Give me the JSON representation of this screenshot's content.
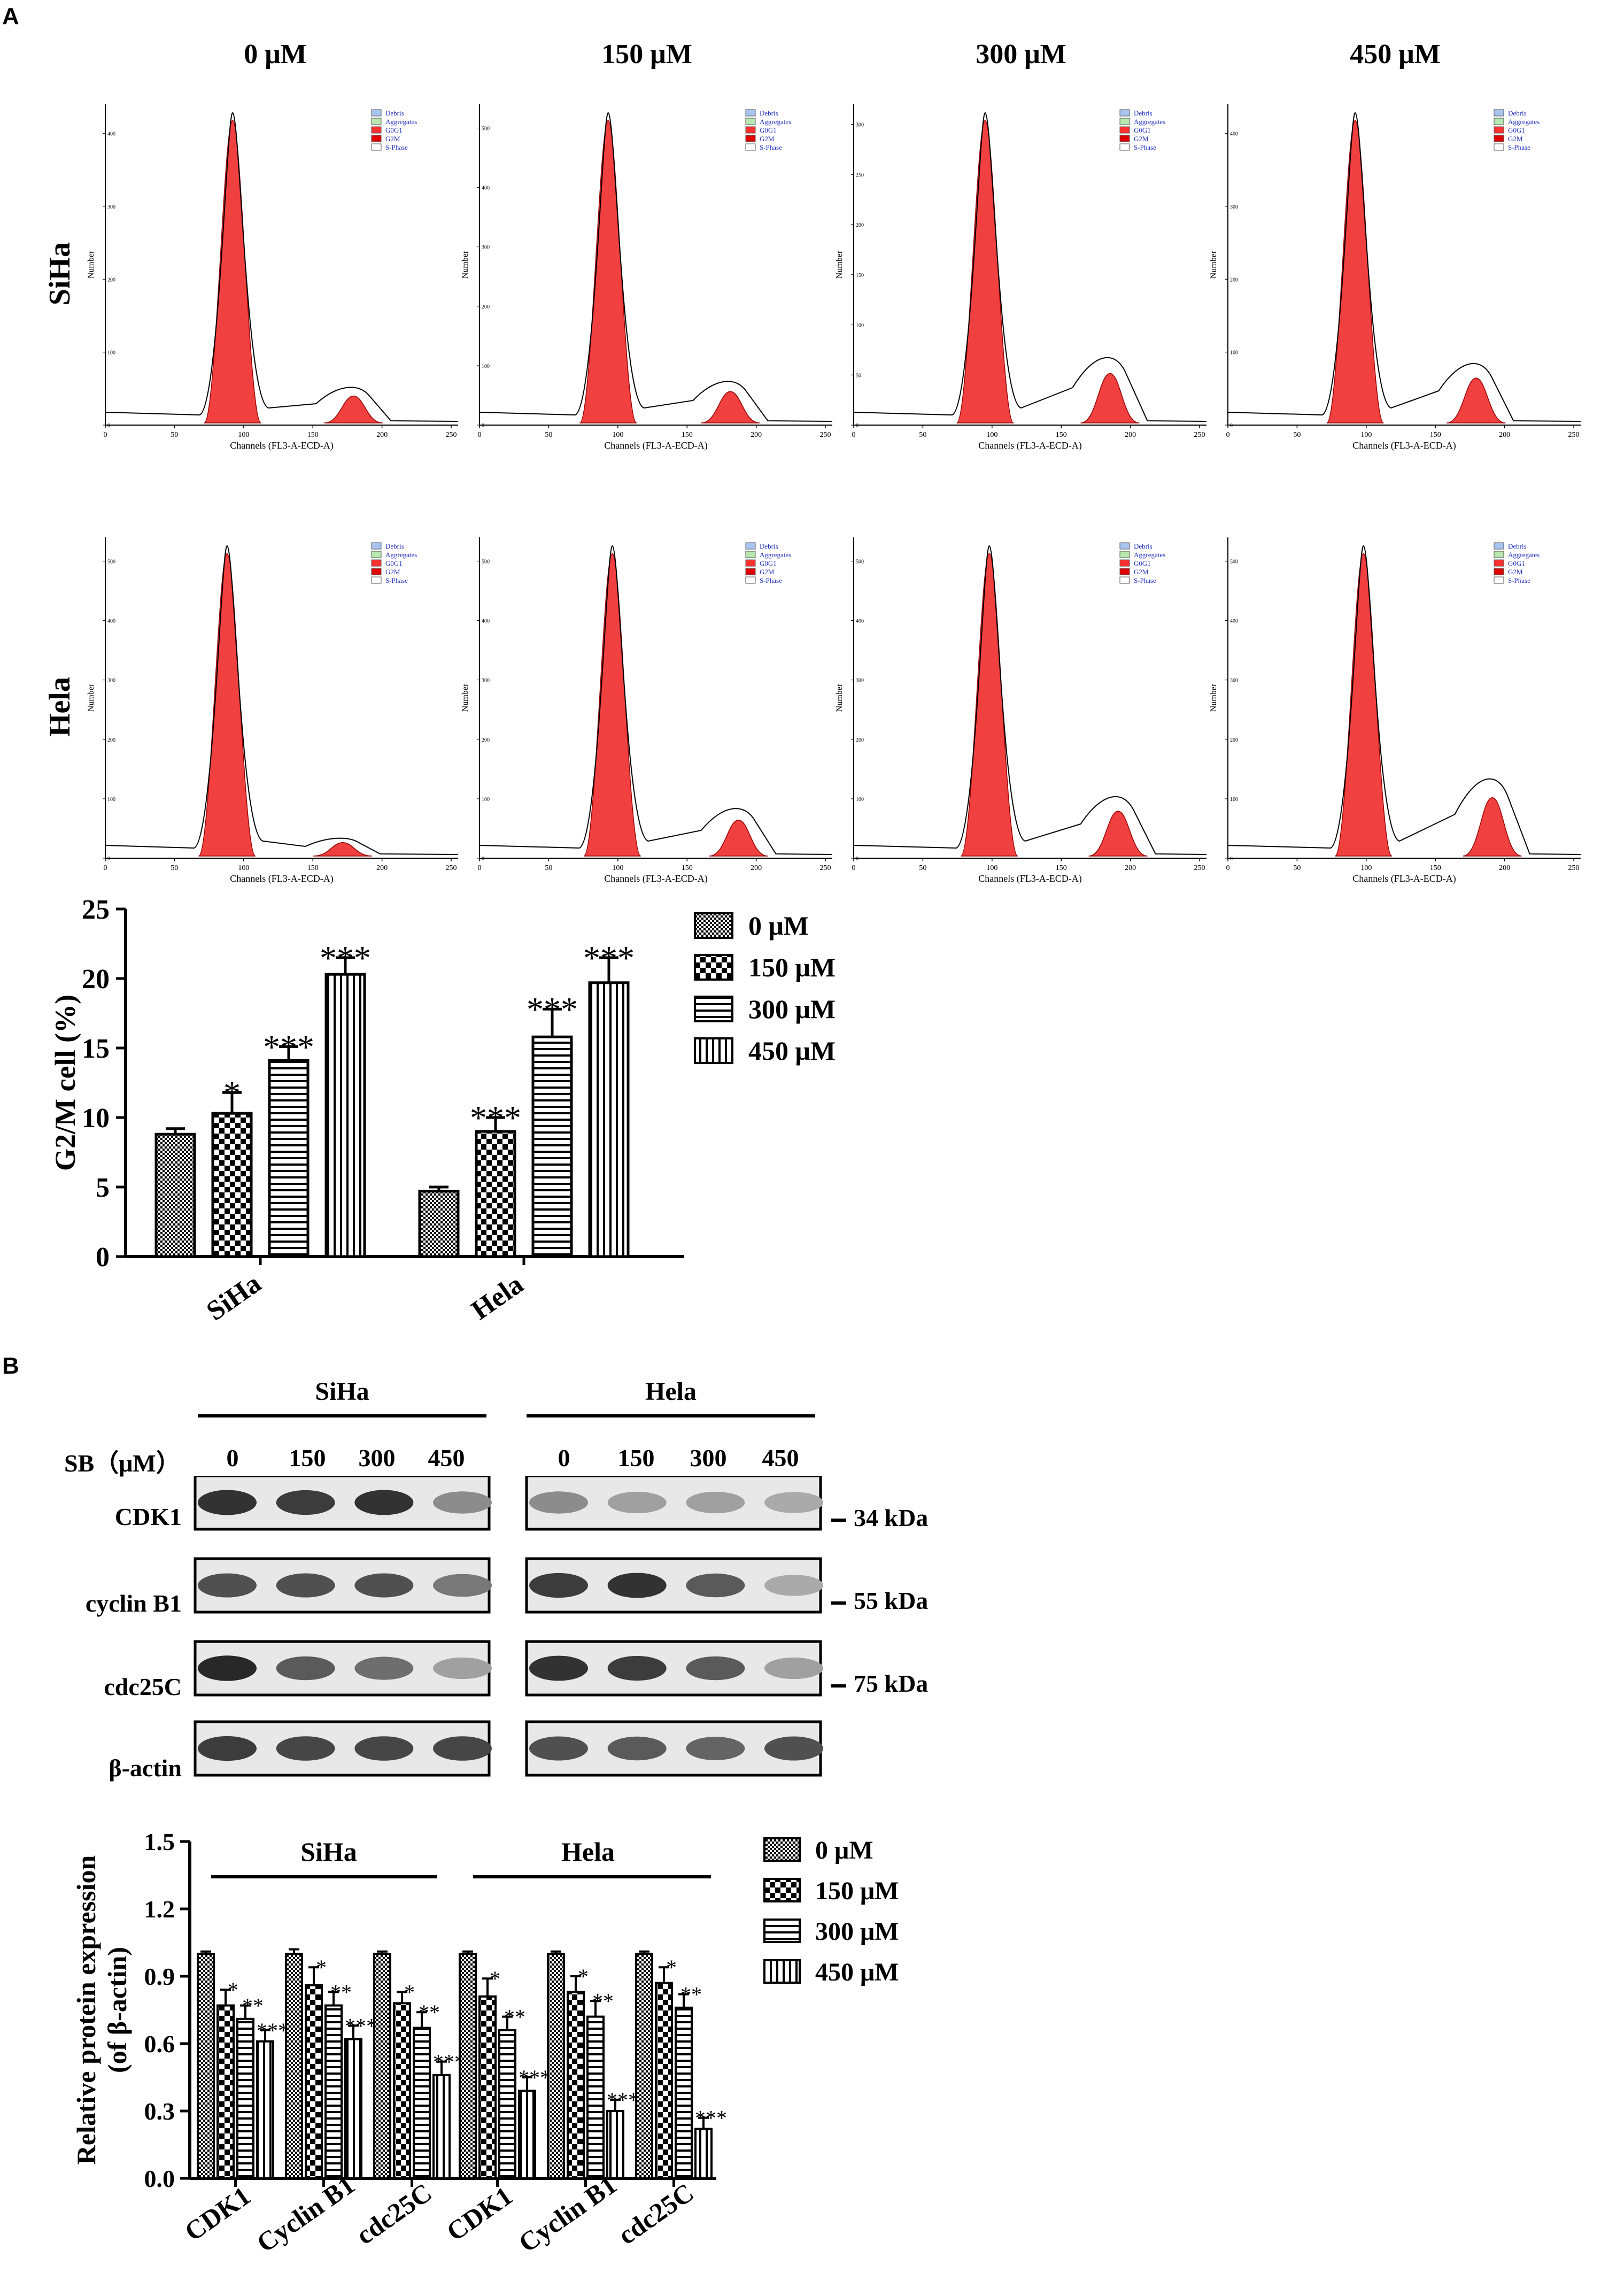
{
  "panel_a": {
    "letter": "A",
    "concentrations": [
      "0 μM",
      "150 μM",
      "300 μM",
      "450 μM"
    ],
    "row_labels": [
      "SiHa",
      "Hela"
    ],
    "histogram": {
      "x_axis_label": "Channels (FL3-A-ECD-A)",
      "y_axis_label": "Number",
      "x_ticks": [
        "0",
        "50",
        "100",
        "150",
        "200",
        "250"
      ],
      "legend": [
        "Debris",
        "Aggregates",
        "G0G1",
        "G2M",
        "S-Phase"
      ],
      "legend_colors": [
        "#a8c4f0",
        "#b8e8b0",
        "#ff3030",
        "#e00000",
        "#ffffff"
      ],
      "g0g1_color": "#f04040"
    },
    "flow_panels": [
      {
        "row": "SiHa",
        "conc": "0 μM",
        "y_ticks": [
          "0",
          "100",
          "200",
          "300",
          "400"
        ],
        "g1_peak": 92,
        "g2_height": 0.12
      },
      {
        "row": "SiHa",
        "conc": "150 μM",
        "y_ticks": [
          "0",
          "100",
          "200",
          "300",
          "400",
          "500"
        ],
        "g1_peak": 93,
        "g2_height": 0.14
      },
      {
        "row": "SiHa",
        "conc": "300 μM",
        "y_ticks": [
          "0",
          "50",
          "100",
          "150",
          "200",
          "250",
          "300"
        ],
        "g1_peak": 95,
        "g2_height": 0.22
      },
      {
        "row": "SiHa",
        "conc": "450 μM",
        "y_ticks": [
          "0",
          "100",
          "200",
          "300",
          "400"
        ],
        "g1_peak": 92,
        "g2_height": 0.2
      },
      {
        "row": "Hela",
        "conc": "0 μM",
        "y_ticks": [
          "0",
          "100",
          "200",
          "300",
          "400",
          "500"
        ],
        "g1_peak": 88,
        "g2_height": 0.06
      },
      {
        "row": "Hela",
        "conc": "150 μM",
        "y_ticks": [
          "0",
          "100",
          "200",
          "300",
          "400",
          "500"
        ],
        "g1_peak": 96,
        "g2_height": 0.16
      },
      {
        "row": "Hela",
        "conc": "300 μM",
        "y_ticks": [
          "0",
          "100",
          "200",
          "300",
          "400",
          "500"
        ],
        "g1_peak": 98,
        "g2_height": 0.2
      },
      {
        "row": "Hela",
        "conc": "450 μM",
        "y_ticks": [
          "0",
          "100",
          "200",
          "300",
          "400",
          "500"
        ],
        "g1_peak": 98,
        "g2_height": 0.26
      }
    ]
  },
  "chart_data": [
    {
      "type": "bar",
      "title": "",
      "ylabel": "G2/M cell (%)",
      "xlabel": "",
      "categories": [
        "SiHa",
        "Hela"
      ],
      "ylim": [
        0,
        25
      ],
      "yticks": [
        "0",
        "5",
        "10",
        "15",
        "20",
        "25"
      ],
      "series": [
        {
          "name": "0 μM",
          "values": [
            8.8,
            4.7
          ],
          "errors": [
            0.4,
            0.3
          ],
          "sig": [
            "",
            ""
          ]
        },
        {
          "name": "150 μM",
          "values": [
            10.3,
            9.0
          ],
          "errors": [
            1.5,
            1.0
          ],
          "sig": [
            "*",
            "***"
          ]
        },
        {
          "name": "300 μM",
          "values": [
            14.1,
            15.8
          ],
          "errors": [
            1.0,
            2.0
          ],
          "sig": [
            "***",
            "***"
          ]
        },
        {
          "name": "450 μM",
          "values": [
            20.3,
            19.7
          ],
          "errors": [
            1.2,
            1.8
          ],
          "sig": [
            "***",
            "***"
          ]
        }
      ],
      "legend_position": "right"
    },
    {
      "type": "bar",
      "title": "",
      "ylabel": "Relative protein expression (of β-actin)",
      "xlabel": "",
      "categories": [
        "CDK1",
        "Cyclin B1",
        "cdc25C",
        "CDK1",
        "Cyclin B1",
        "cdc25C"
      ],
      "groups": [
        "SiHa",
        "Hela"
      ],
      "ylim": [
        0,
        1.5
      ],
      "yticks": [
        "0.0",
        "0.3",
        "0.6",
        "0.9",
        "1.2",
        "1.5"
      ],
      "series": [
        {
          "name": "0 μM",
          "values": [
            1.0,
            1.0,
            1.0,
            1.0,
            1.0,
            1.0
          ],
          "errors": [
            0.01,
            0.02,
            0.01,
            0.01,
            0.01,
            0.01
          ],
          "sig": [
            "",
            "",
            "",
            "",
            "",
            ""
          ]
        },
        {
          "name": "150 μM",
          "values": [
            0.77,
            0.86,
            0.78,
            0.81,
            0.83,
            0.87
          ],
          "errors": [
            0.07,
            0.08,
            0.05,
            0.08,
            0.07,
            0.07
          ],
          "sig": [
            "*",
            "*",
            "*",
            "*",
            "*",
            "*"
          ]
        },
        {
          "name": "300 μM",
          "values": [
            0.71,
            0.77,
            0.67,
            0.66,
            0.72,
            0.76
          ],
          "errors": [
            0.06,
            0.06,
            0.07,
            0.06,
            0.07,
            0.06
          ],
          "sig": [
            "**",
            "**",
            "**",
            "**",
            "**",
            "**"
          ]
        },
        {
          "name": "450 μM",
          "values": [
            0.61,
            0.62,
            0.46,
            0.39,
            0.3,
            0.22
          ],
          "errors": [
            0.05,
            0.06,
            0.06,
            0.06,
            0.05,
            0.05
          ],
          "sig": [
            "***",
            "***",
            "***",
            "***",
            "***",
            "***"
          ]
        }
      ],
      "legend_position": "right"
    }
  ],
  "panel_b": {
    "letter": "B",
    "cell_lines": [
      "SiHa",
      "Hela"
    ],
    "sb_label": "SB（μM）",
    "lanes": [
      "0",
      "150",
      "300",
      "450"
    ],
    "proteins": [
      {
        "name": "CDK1",
        "kda": "34 kDa",
        "siha": [
          0.9,
          0.85,
          0.9,
          0.45
        ],
        "hela": [
          0.45,
          0.35,
          0.35,
          0.3
        ]
      },
      {
        "name": "cyclin B1",
        "kda": "55 kDa",
        "siha": [
          0.75,
          0.75,
          0.75,
          0.55
        ],
        "hela": [
          0.85,
          0.9,
          0.7,
          0.3
        ]
      },
      {
        "name": "cdc25C",
        "kda": "75 kDa",
        "siha": [
          0.95,
          0.7,
          0.6,
          0.35
        ],
        "hela": [
          0.9,
          0.85,
          0.7,
          0.35
        ]
      },
      {
        "name": "β-actin",
        "kda": "",
        "siha": [
          0.85,
          0.8,
          0.8,
          0.8
        ],
        "hela": [
          0.75,
          0.7,
          0.65,
          0.75
        ]
      }
    ]
  },
  "legend_labels": [
    "0 μM",
    "150 μM",
    "300 μM",
    "450 μM"
  ],
  "group_headers": {
    "left": "SiHa",
    "right": "Hela"
  }
}
